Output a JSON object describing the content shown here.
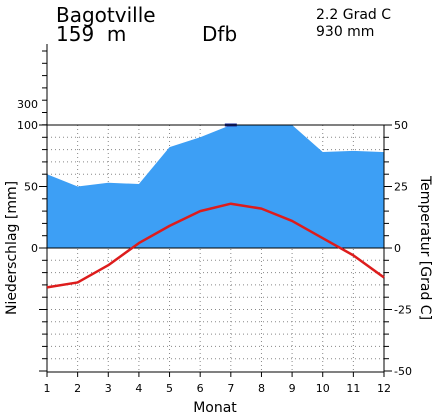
{
  "header": {
    "station": "Bagotville",
    "elevation": "159  m",
    "climate_class": "Dfb",
    "mean_temp": "2.2 Grad C",
    "annual_precip": "930 mm"
  },
  "chart_data": {
    "type": "line",
    "title": "Bagotville",
    "xlabel": "Monat",
    "ylabel_left": "Niederschlag [mm]",
    "ylabel_right": "Temperatur [Grad C]",
    "categories": [
      "1",
      "2",
      "3",
      "4",
      "5",
      "6",
      "7",
      "8",
      "9",
      "10",
      "11",
      "12"
    ],
    "precip_ylim": [
      0,
      100
    ],
    "precip_ticks": [
      "0",
      "50",
      "100",
      "300"
    ],
    "temp_ylim": [
      -50,
      50
    ],
    "temp_ticks": [
      "50",
      "25",
      "0",
      "-25",
      "-50"
    ],
    "series": [
      {
        "name": "Niederschlag",
        "unit": "mm",
        "color": "#3d9ff5",
        "values": [
          60,
          50,
          53,
          52,
          82,
          90,
          101,
          100,
          100,
          78,
          79,
          78
        ]
      },
      {
        "name": "Temperatur",
        "unit": "Grad C",
        "color": "#dd1c1c",
        "values": [
          -16,
          -14,
          -7,
          2,
          9,
          15,
          18,
          16,
          11,
          4,
          -3,
          -12
        ]
      }
    ],
    "grid": true
  }
}
